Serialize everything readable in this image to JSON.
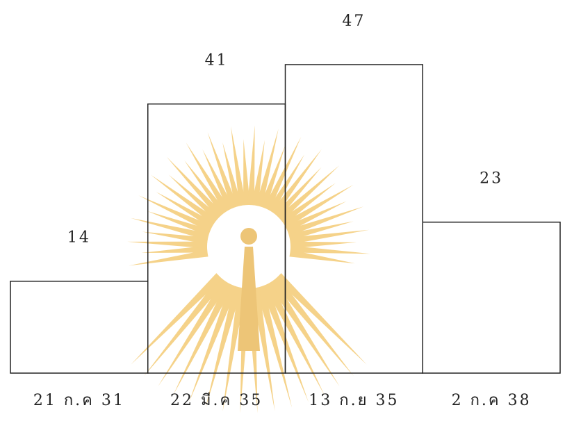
{
  "chart_data": {
    "type": "bar",
    "categories": [
      "21 ก.ค 31",
      "22 มี.ค 35",
      "13 ก.ย 35",
      "2 ก.ค 38"
    ],
    "values": [
      14,
      41,
      47,
      23
    ],
    "color": "#222222"
  }
}
